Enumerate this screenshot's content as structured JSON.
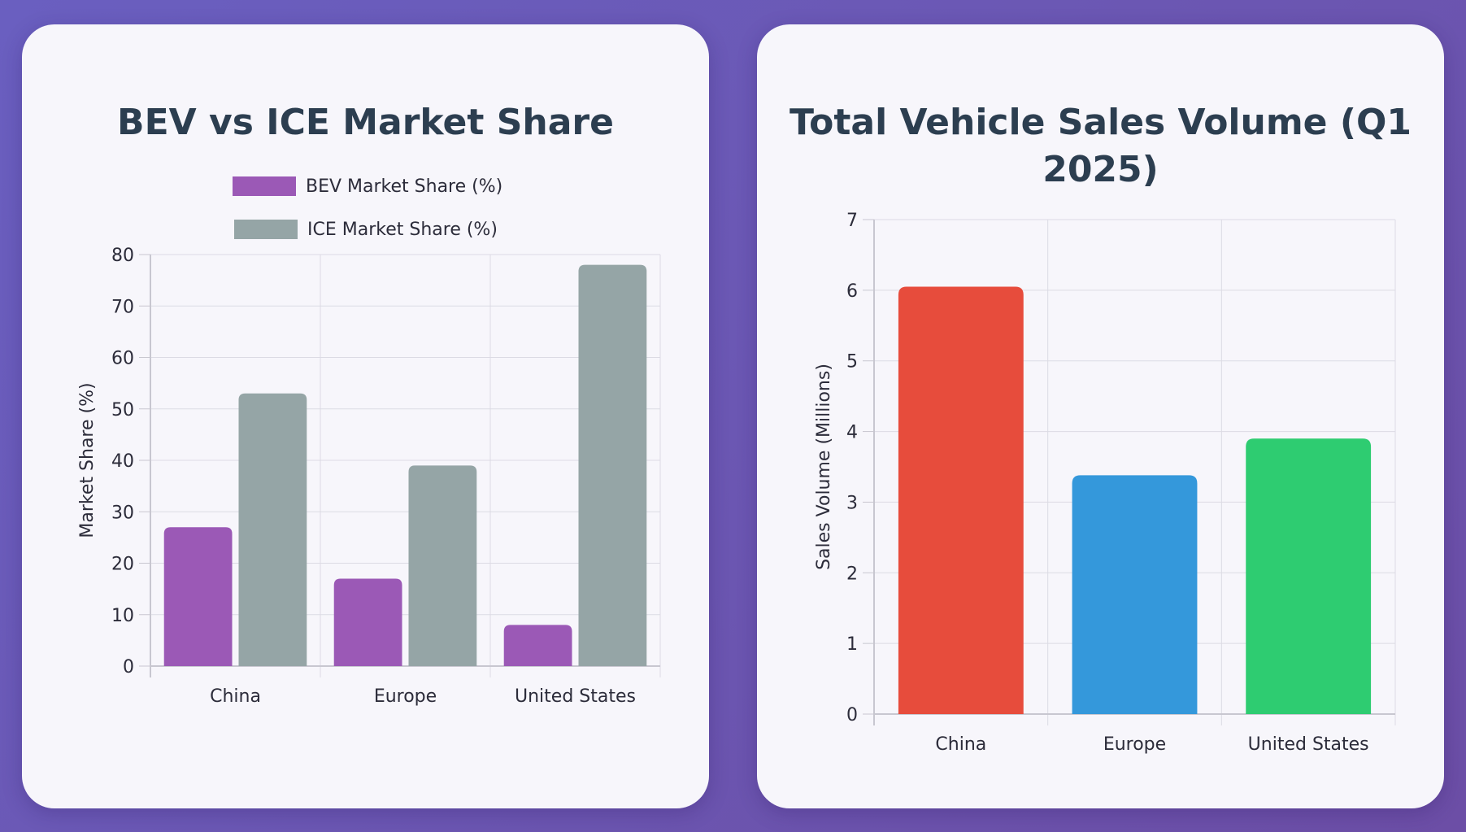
{
  "colors": {
    "bev": "#9b59b6",
    "ice": "#95a5a6",
    "china": "#e74c3c",
    "europe": "#3498db",
    "united_states": "#2ecc71",
    "grid": "#dcdbe4",
    "axis": "#c8c7d0",
    "text": "#2c3e50"
  },
  "chart_data": [
    {
      "type": "bar",
      "title": "BEV vs ICE Market Share",
      "categories": [
        "China",
        "Europe",
        "United States"
      ],
      "series": [
        {
          "name": "BEV Market Share (%)",
          "values": [
            27,
            17,
            8
          ],
          "color": "#9b59b6"
        },
        {
          "name": "ICE Market Share (%)",
          "values": [
            53,
            39,
            78
          ],
          "color": "#95a5a6"
        }
      ],
      "xlabel": "",
      "ylabel": "Market Share (%)",
      "ylim": [
        0,
        80
      ],
      "yticks": [
        0,
        10,
        20,
        30,
        40,
        50,
        60,
        70,
        80
      ],
      "grid": true,
      "legend": "top-center"
    },
    {
      "type": "bar",
      "title": "Total Vehicle Sales Volume (Q1 2025)",
      "categories": [
        "China",
        "Europe",
        "United States"
      ],
      "series": [
        {
          "values": [
            6.05,
            3.38,
            3.9
          ],
          "colors": [
            "#e74c3c",
            "#3498db",
            "#2ecc71"
          ]
        }
      ],
      "xlabel": "",
      "ylabel": "Sales Volume (Millions)",
      "ylim": [
        0,
        7
      ],
      "yticks": [
        0,
        1,
        2,
        3,
        4,
        5,
        6,
        7
      ],
      "grid": true,
      "legend": "none"
    }
  ]
}
